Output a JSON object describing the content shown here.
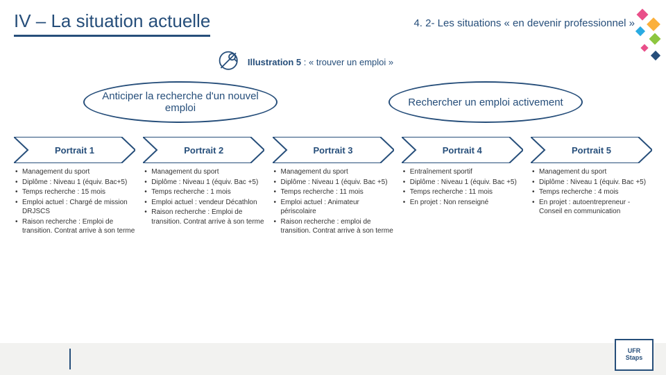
{
  "header": {
    "main_title": "IV – La situation actuelle",
    "subtitle": "4. 2- Les situations « en devenir professionnel »"
  },
  "illustration": {
    "label_prefix": "Illustration 5",
    "label_suffix": " : « trouver un emploi »"
  },
  "bubbles": {
    "left": "Anticiper la recherche d'un nouvel emploi",
    "right": "Rechercher un emploi activement"
  },
  "portraits": [
    {
      "title": "Portrait 1",
      "items": [
        "Management du sport",
        "Diplôme : Niveau 1 (équiv. Bac+5)",
        "Temps recherche : 15 mois",
        "Emploi actuel : Chargé de mission DRJSCS",
        "Raison recherche : Emploi de transition. Contrat arrive à son terme"
      ]
    },
    {
      "title": "Portrait 2",
      "items": [
        "Management du sport",
        "Diplôme : Niveau 1 (équiv. Bac +5)",
        "Temps recherche : 1 mois",
        "Emploi actuel : vendeur Décathlon",
        "Raison recherche : Emploi de transition. Contrat arrive à son terme"
      ]
    },
    {
      "title": "Portrait 3",
      "items": [
        "Management du sport",
        "Diplôme : Niveau 1 (équiv. Bac +5)",
        "Temps recherche : 11 mois",
        "Emploi actuel : Animateur périscolaire",
        "Raison recherche : emploi de transition. Contrat arrive à son terme"
      ]
    },
    {
      "title": "Portrait 4",
      "items": [
        "Entraînement sportif",
        "Diplôme : Niveau 1 (équiv. Bac +5)",
        "Temps recherche : 11 mois",
        "En projet : Non renseigné"
      ]
    },
    {
      "title": "Portrait 5",
      "items": [
        "Management du sport",
        "Diplôme : Niveau 1 (équiv. Bac +5)",
        "Temps recherche : 4 mois",
        "En projet : autoentrepreneur - Conseil en communication"
      ]
    }
  ],
  "logo": {
    "line1": "UFR",
    "line2": "Staps"
  },
  "colors": {
    "primary": "#264e7a",
    "shape_stroke": "#264e7a",
    "bg": "#ffffff",
    "footer": "#f2f2f0"
  }
}
